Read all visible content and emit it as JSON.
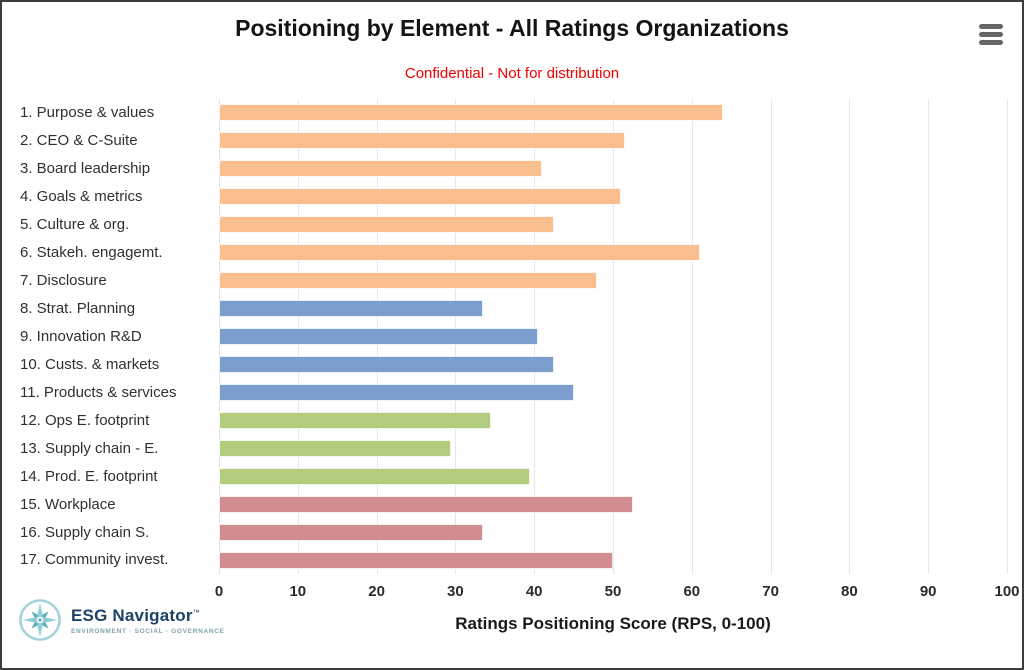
{
  "header": {
    "menu_icon": "hamburger-menu-icon"
  },
  "chart_data": {
    "type": "bar",
    "orientation": "horizontal",
    "title": "Positioning by Element - All Ratings Organizations",
    "subtitle": "Confidential - Not for distribution",
    "subtitle_color": "#f40000",
    "xlabel": "Ratings Positioning Score (RPS, 0-100)",
    "xlim": [
      0,
      100
    ],
    "xticks": [
      0,
      10,
      20,
      30,
      40,
      50,
      60,
      70,
      80,
      90,
      100
    ],
    "grid": true,
    "legend": "none",
    "categories": [
      "1. Purpose & values",
      "2. CEO & C-Suite",
      "3. Board leadership",
      "4. Goals & metrics",
      "5. Culture & org.",
      "6. Stakeh. engagemt.",
      "7. Disclosure",
      "8. Strat. Planning",
      "9. Innovation R&D",
      "10. Custs. & markets",
      "11. Products & services",
      "12. Ops E. footprint",
      "13. Supply chain - E.",
      "14. Prod. E. footprint",
      "15. Workplace",
      "16. Supply chain S.",
      "17. Community invest."
    ],
    "values": [
      64,
      51.5,
      41,
      51,
      42.5,
      61,
      48,
      33.5,
      40.5,
      42.5,
      45,
      34.5,
      29.5,
      39.5,
      52.5,
      33.5,
      50
    ],
    "bar_colors": [
      "#FABF8F",
      "#FABF8F",
      "#FABF8F",
      "#FABF8F",
      "#FABF8F",
      "#FABF8F",
      "#FABF8F",
      "#7C9ECF",
      "#7C9ECF",
      "#7C9ECF",
      "#7C9ECF",
      "#B2CC7E",
      "#B2CC7E",
      "#B2CC7E",
      "#D18E90",
      "#D18E90",
      "#D18E90"
    ],
    "color_groups": [
      {
        "color": "#FABF8F",
        "categories_from": 1,
        "categories_to": 7
      },
      {
        "color": "#7C9ECF",
        "categories_from": 8,
        "categories_to": 11
      },
      {
        "color": "#B2CC7E",
        "categories_from": 12,
        "categories_to": 14
      },
      {
        "color": "#D18E90",
        "categories_from": 15,
        "categories_to": 17
      }
    ],
    "gridline_color": "#e6e6e6"
  },
  "footer": {
    "brand": "ESG Navigator",
    "trademark": "™",
    "tagline": "ENVIRONMENT · SOCIAL · GOVERNANCE",
    "logo_icon": "compass-icon",
    "brand_color": "#1d4266",
    "icon_teal": "#5aaeb4"
  }
}
